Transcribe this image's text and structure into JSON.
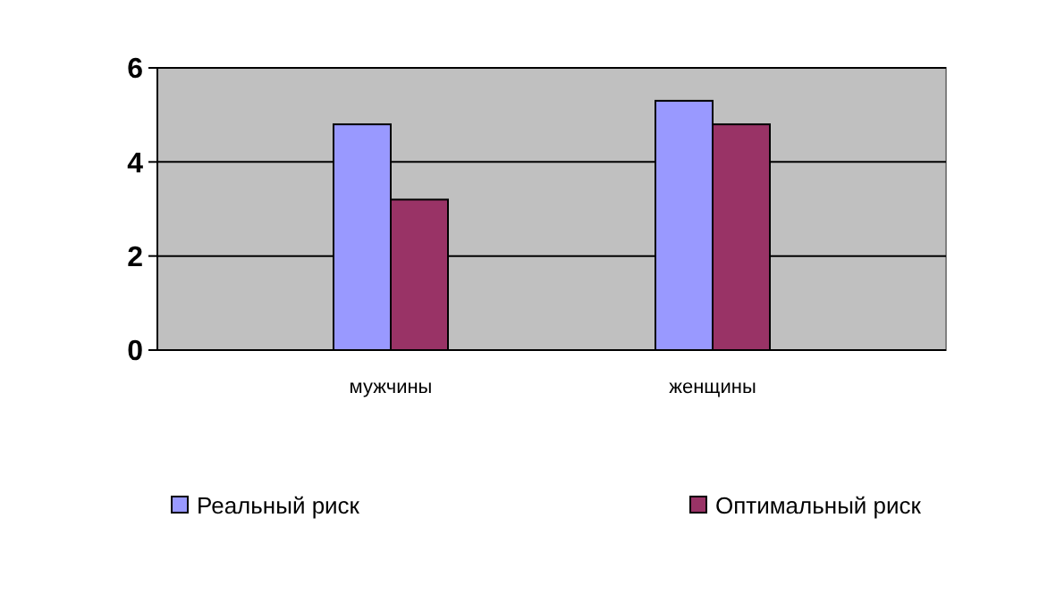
{
  "chart_data": {
    "type": "bar",
    "categories": [
      "мужчины",
      "женщины"
    ],
    "series": [
      {
        "name": "Реальный риск",
        "color": "#9999ff",
        "values": [
          4.8,
          5.3
        ]
      },
      {
        "name": "Оптимальный риск",
        "color": "#993366",
        "values": [
          3.2,
          4.8
        ]
      }
    ],
    "ylim": [
      0,
      6
    ],
    "yticks": [
      0,
      2,
      4,
      6
    ],
    "grid": "y",
    "legend": "bottom"
  }
}
